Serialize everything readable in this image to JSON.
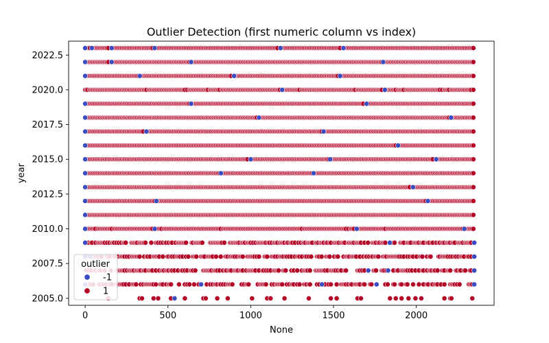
{
  "chart_data": {
    "type": "scatter",
    "title": "Outlier Detection (first numeric column vs index)",
    "xlabel": "None",
    "ylabel": "year",
    "xlim": [
      -100,
      2470
    ],
    "ylim": [
      2004.5,
      2023.5
    ],
    "xticks": [
      0,
      500,
      1000,
      1500,
      2000
    ],
    "xtick_labels": [
      "0",
      "500",
      "1000",
      "1500",
      "2000"
    ],
    "yticks": [
      2005.0,
      2007.5,
      2010.0,
      2012.5,
      2015.0,
      2017.5,
      2020.0,
      2022.5
    ],
    "ytick_labels": [
      "2005.0",
      "2007.5",
      "2010.0",
      "2012.5",
      "2015.0",
      "2017.5",
      "2020.0",
      "2022.5"
    ],
    "grid": false,
    "legend": {
      "title": "outlier",
      "placement": "lower-left",
      "entries": [
        {
          "label": "-1",
          "color": "#3b4cc0"
        },
        {
          "label": "1",
          "color": "#b40426"
        }
      ]
    },
    "index_range": [
      0,
      2350
    ],
    "year_range": [
      2005,
      2023
    ],
    "row_density": {
      "2005": 0.12,
      "2006": 0.45,
      "2007": 0.55,
      "2008": 0.55,
      "2009": 0.7,
      "2010": 0.97,
      "2011": 1.0,
      "2012": 1.0,
      "2013": 1.0,
      "2014": 1.0,
      "2015": 1.0,
      "2016": 1.0,
      "2017": 1.0,
      "2018": 1.0,
      "2019": 1.0,
      "2020": 0.95,
      "2021": 1.0,
      "2022": 1.0,
      "2023": 1.0
    },
    "series": [
      {
        "name": "-1",
        "color": "#3b4cc0",
        "points": [
          [
            0,
            2023
          ],
          [
            40,
            2023
          ],
          [
            160,
            2023
          ],
          [
            420,
            2023
          ],
          [
            1180,
            2023
          ],
          [
            1560,
            2023
          ],
          [
            0,
            2022
          ],
          [
            160,
            2022
          ],
          [
            640,
            2022
          ],
          [
            1800,
            2022
          ],
          [
            0,
            2021
          ],
          [
            330,
            2021
          ],
          [
            900,
            2021
          ],
          [
            1540,
            2021
          ],
          [
            1190,
            2020
          ],
          [
            1810,
            2020
          ],
          [
            0,
            2019
          ],
          [
            640,
            2019
          ],
          [
            1700,
            2019
          ],
          [
            0,
            2018
          ],
          [
            1050,
            2018
          ],
          [
            2210,
            2018
          ],
          [
            0,
            2017
          ],
          [
            370,
            2017
          ],
          [
            1440,
            2017
          ],
          [
            0,
            2016
          ],
          [
            1890,
            2016
          ],
          [
            0,
            2015
          ],
          [
            1000,
            2015
          ],
          [
            1480,
            2015
          ],
          [
            2120,
            2015
          ],
          [
            0,
            2014
          ],
          [
            820,
            2014
          ],
          [
            1380,
            2014
          ],
          [
            0,
            2013
          ],
          [
            1980,
            2013
          ],
          [
            0,
            2012
          ],
          [
            430,
            2012
          ],
          [
            2070,
            2012
          ],
          [
            0,
            2011
          ],
          [
            0,
            2010
          ],
          [
            420,
            2010
          ],
          [
            1640,
            2010
          ],
          [
            2290,
            2010
          ],
          [
            0,
            2009
          ],
          [
            1840,
            2009
          ],
          [
            2350,
            2009
          ],
          [
            0,
            2008
          ],
          [
            30,
            2008
          ],
          [
            2350,
            2008
          ],
          [
            1710,
            2007
          ],
          [
            1830,
            2007
          ],
          [
            2350,
            2007
          ],
          [
            0,
            2006
          ],
          [
            700,
            2006
          ],
          [
            1430,
            2006
          ],
          [
            1760,
            2006
          ],
          [
            2350,
            2006
          ],
          [
            540,
            2005
          ]
        ]
      },
      {
        "name": "1",
        "color": "#b40426",
        "description": "all remaining index positions on each integer year row"
      }
    ]
  }
}
